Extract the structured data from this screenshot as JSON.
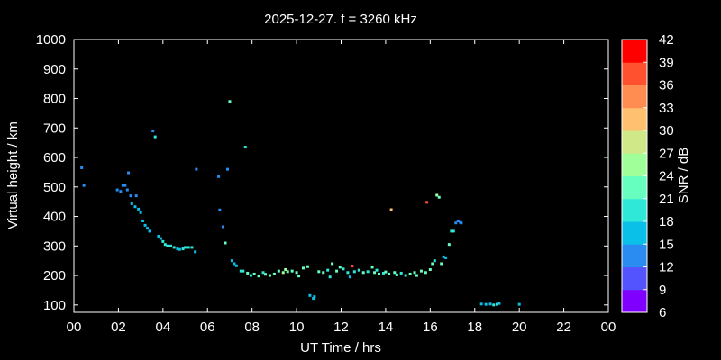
{
  "chart_data": {
    "type": "scatter",
    "title": "2025-12-27. f = 3260 kHz",
    "xlabel": "UT Time / hrs",
    "ylabel": "Virtual height / km",
    "xlim": [
      0,
      24
    ],
    "ylim": [
      75,
      1000
    ],
    "x_ticks": [
      "00",
      "02",
      "04",
      "06",
      "08",
      "10",
      "12",
      "14",
      "16",
      "18",
      "20",
      "22",
      "00"
    ],
    "y_ticks": [
      100,
      200,
      300,
      400,
      500,
      600,
      700,
      800,
      900,
      1000
    ],
    "grid": false,
    "colorbar": {
      "label": "SNR / dB",
      "min": 6,
      "max": 42,
      "ticks": [
        6,
        9,
        12,
        15,
        18,
        21,
        24,
        27,
        30,
        33,
        36,
        39,
        42
      ],
      "colors": [
        "#8000ff",
        "#5454ff",
        "#2a8cf0",
        "#0ac0e8",
        "#30e8d8",
        "#66ffc0",
        "#a0ff98",
        "#d0e888",
        "#ffc070",
        "#ff8c50",
        "#ff5030",
        "#ff0000"
      ]
    },
    "points": [
      [
        0.35,
        565,
        12
      ],
      [
        0.45,
        505,
        12
      ],
      [
        1.95,
        490,
        12
      ],
      [
        2.1,
        485,
        12
      ],
      [
        2.2,
        505,
        12
      ],
      [
        2.3,
        505,
        12
      ],
      [
        2.4,
        490,
        12
      ],
      [
        2.45,
        548,
        12
      ],
      [
        2.55,
        470,
        12
      ],
      [
        2.6,
        443,
        15
      ],
      [
        2.75,
        433,
        15
      ],
      [
        2.8,
        470,
        12
      ],
      [
        2.9,
        425,
        15
      ],
      [
        3.0,
        413,
        15
      ],
      [
        3.1,
        385,
        15
      ],
      [
        3.2,
        370,
        15
      ],
      [
        3.3,
        360,
        15
      ],
      [
        3.4,
        350,
        15
      ],
      [
        3.55,
        690,
        12
      ],
      [
        3.65,
        670,
        18
      ],
      [
        3.8,
        333,
        15
      ],
      [
        3.9,
        325,
        15
      ],
      [
        4.0,
        315,
        18
      ],
      [
        4.1,
        305,
        18
      ],
      [
        4.2,
        300,
        18
      ],
      [
        4.35,
        300,
        18
      ],
      [
        4.5,
        295,
        18
      ],
      [
        4.65,
        290,
        15
      ],
      [
        4.75,
        288,
        15
      ],
      [
        4.9,
        290,
        18
      ],
      [
        5.0,
        295,
        18
      ],
      [
        5.15,
        295,
        18
      ],
      [
        5.3,
        295,
        18
      ],
      [
        5.45,
        280,
        15
      ],
      [
        5.5,
        560,
        12
      ],
      [
        6.5,
        535,
        12
      ],
      [
        6.55,
        422,
        12
      ],
      [
        6.7,
        365,
        12
      ],
      [
        6.8,
        310,
        21
      ],
      [
        6.9,
        560,
        12
      ],
      [
        7.0,
        790,
        21
      ],
      [
        7.1,
        250,
        15
      ],
      [
        7.2,
        240,
        15
      ],
      [
        7.3,
        233,
        15
      ],
      [
        7.5,
        215,
        18
      ],
      [
        7.6,
        215,
        18
      ],
      [
        7.7,
        635,
        18
      ],
      [
        7.8,
        208,
        21
      ],
      [
        7.95,
        200,
        18
      ],
      [
        8.1,
        205,
        21
      ],
      [
        8.3,
        198,
        21
      ],
      [
        8.5,
        210,
        18
      ],
      [
        8.6,
        204,
        21
      ],
      [
        8.8,
        200,
        21
      ],
      [
        9.0,
        205,
        21
      ],
      [
        9.2,
        215,
        21
      ],
      [
        9.4,
        210,
        24
      ],
      [
        9.5,
        220,
        24
      ],
      [
        9.6,
        213,
        21
      ],
      [
        9.8,
        215,
        21
      ],
      [
        10.0,
        210,
        21
      ],
      [
        10.1,
        198,
        21
      ],
      [
        10.3,
        225,
        21
      ],
      [
        10.5,
        230,
        21
      ],
      [
        10.6,
        132,
        15
      ],
      [
        10.75,
        122,
        15
      ],
      [
        10.8,
        128,
        15
      ],
      [
        11.0,
        213,
        21
      ],
      [
        11.2,
        210,
        21
      ],
      [
        11.4,
        218,
        18
      ],
      [
        11.5,
        195,
        18
      ],
      [
        11.6,
        240,
        21
      ],
      [
        11.8,
        215,
        21
      ],
      [
        11.95,
        228,
        21
      ],
      [
        12.1,
        222,
        18
      ],
      [
        12.3,
        210,
        18
      ],
      [
        12.4,
        195,
        15
      ],
      [
        12.5,
        232,
        36
      ],
      [
        12.6,
        213,
        18
      ],
      [
        12.8,
        218,
        18
      ],
      [
        13.0,
        210,
        21
      ],
      [
        13.2,
        213,
        18
      ],
      [
        13.4,
        228,
        21
      ],
      [
        13.5,
        210,
        21
      ],
      [
        13.6,
        218,
        18
      ],
      [
        13.7,
        205,
        21
      ],
      [
        13.9,
        208,
        18
      ],
      [
        14.0,
        212,
        21
      ],
      [
        14.15,
        205,
        21
      ],
      [
        14.25,
        423,
        30
      ],
      [
        14.4,
        210,
        21
      ],
      [
        14.5,
        202,
        21
      ],
      [
        14.7,
        208,
        18
      ],
      [
        14.9,
        200,
        18
      ],
      [
        15.1,
        205,
        21
      ],
      [
        15.3,
        210,
        21
      ],
      [
        15.4,
        200,
        21
      ],
      [
        15.6,
        215,
        21
      ],
      [
        15.8,
        210,
        21
      ],
      [
        15.85,
        448,
        36
      ],
      [
        16.0,
        220,
        21
      ],
      [
        16.1,
        240,
        21
      ],
      [
        16.2,
        250,
        18
      ],
      [
        16.3,
        472,
        24
      ],
      [
        16.4,
        465,
        21
      ],
      [
        16.5,
        240,
        21
      ],
      [
        16.6,
        263,
        15
      ],
      [
        16.7,
        260,
        15
      ],
      [
        16.85,
        305,
        21
      ],
      [
        16.95,
        350,
        18
      ],
      [
        17.05,
        350,
        18
      ],
      [
        17.15,
        378,
        12
      ],
      [
        17.25,
        385,
        12
      ],
      [
        17.35,
        380,
        12
      ],
      [
        17.4,
        378,
        12
      ],
      [
        18.3,
        103,
        15
      ],
      [
        18.5,
        102,
        15
      ],
      [
        18.7,
        103,
        15
      ],
      [
        18.85,
        100,
        18
      ],
      [
        19.0,
        102,
        18
      ],
      [
        19.1,
        105,
        15
      ],
      [
        20.0,
        102,
        15
      ]
    ]
  }
}
